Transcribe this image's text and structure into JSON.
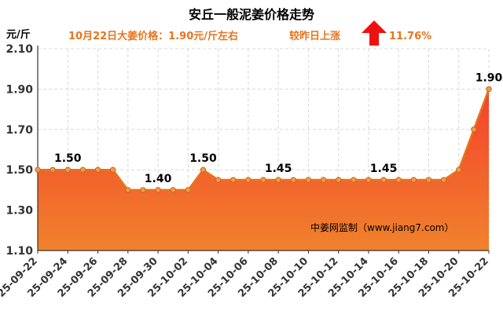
{
  "chart_data": {
    "type": "area",
    "title": "安丘一般泥姜价格走势",
    "subtitle_left": "10月22日大姜价格：1.90元/斤左右",
    "subtitle_right": "较昨日上涨",
    "change_pct": "11.76%",
    "ylabel": "元/斤",
    "ylim": [
      1.1,
      2.1
    ],
    "yticks": [
      "1.10",
      "1.30",
      "1.50",
      "1.70",
      "1.90",
      "2.10"
    ],
    "x_tick_labels": [
      "25-09-22",
      "25-09-24",
      "25-09-26",
      "25-09-28",
      "25-09-30",
      "25-10-02",
      "25-10-04",
      "25-10-06",
      "25-10-08",
      "25-10-10",
      "25-10-12",
      "25-10-14",
      "25-10-16",
      "25-10-18",
      "25-10-20",
      "25-10-22"
    ],
    "x": [
      "25-09-22",
      "25-09-23",
      "25-09-24",
      "25-09-25",
      "25-09-26",
      "25-09-27",
      "25-09-28",
      "25-09-29",
      "25-09-30",
      "25-10-01",
      "25-10-02",
      "25-10-03",
      "25-10-04",
      "25-10-05",
      "25-10-06",
      "25-10-07",
      "25-10-08",
      "25-10-09",
      "25-10-10",
      "25-10-11",
      "25-10-12",
      "25-10-13",
      "25-10-14",
      "25-10-15",
      "25-10-16",
      "25-10-17",
      "25-10-18",
      "25-10-19",
      "25-10-20",
      "25-10-21",
      "25-10-22"
    ],
    "series": [
      {
        "values": [
          1.5,
          1.5,
          1.5,
          1.5,
          1.5,
          1.5,
          1.4,
          1.4,
          1.4,
          1.4,
          1.4,
          1.5,
          1.45,
          1.45,
          1.45,
          1.45,
          1.45,
          1.45,
          1.45,
          1.45,
          1.45,
          1.45,
          1.45,
          1.45,
          1.45,
          1.45,
          1.45,
          1.45,
          1.5,
          1.7,
          1.9
        ]
      }
    ],
    "data_labels": [
      {
        "index": 2,
        "text": "1.50"
      },
      {
        "index": 8,
        "text": "1.40"
      },
      {
        "index": 11,
        "text": "1.50"
      },
      {
        "index": 16,
        "text": "1.45"
      },
      {
        "index": 23,
        "text": "1.45"
      },
      {
        "index": 30,
        "text": "1.90"
      }
    ],
    "grid": true,
    "colors": {
      "area_top": "#f5402c",
      "area_bottom": "#f0822c",
      "line": "#e8741e",
      "marker": "#f29a4a",
      "subtitle": "#e8741e",
      "arrow": "#ee1111"
    },
    "watermark": "中姜网监制（www.jiang7.com）",
    "arrow_icon": "arrow-up-icon"
  }
}
